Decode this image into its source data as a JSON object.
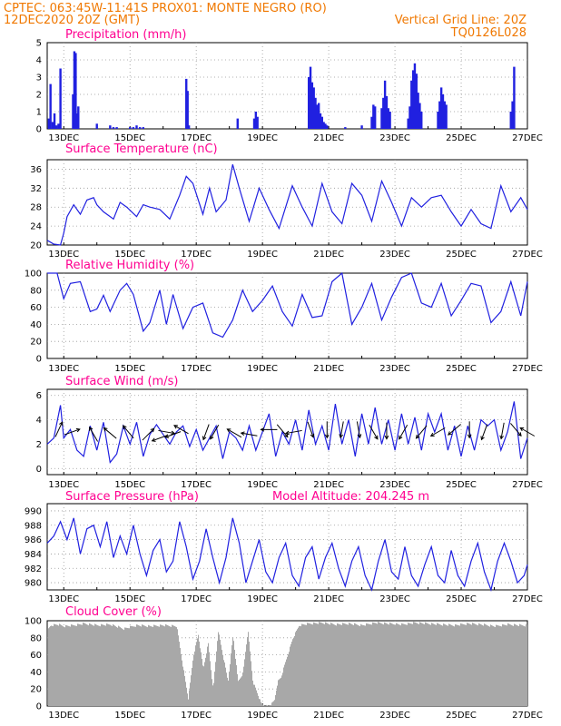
{
  "header": {
    "line1": "CPTEC:    063:45W-11:41S    PROX01: MONTE NEGRO (RO)",
    "line2_left": "12DEC2020 20Z (GMT)",
    "line2_right": "Vertical Grid Line: 20Z",
    "line3_right": "TQ0126L028"
  },
  "colors": {
    "header": "#f07800",
    "title": "#ff0090",
    "series": "#2020e0",
    "cloud": "#a8a8a8",
    "arrow": "#000000"
  },
  "x_axis": {
    "labels": [
      "13DEC",
      "15DEC",
      "17DEC",
      "19DEC",
      "21DEC",
      "23DEC",
      "25DEC",
      "27DEC"
    ],
    "start_day": 12.5,
    "end_day": 27.0
  },
  "chart_data": [
    {
      "type": "bar",
      "title": "Precipitation (mm/h)",
      "ylim": [
        0,
        5
      ],
      "yticks": [
        0,
        1,
        2,
        3,
        4,
        5
      ],
      "days": [
        12.55,
        12.6,
        12.66,
        12.72,
        12.78,
        12.84,
        12.9,
        13.28,
        13.32,
        13.36,
        13.4,
        13.44,
        14.0,
        14.4,
        14.5,
        14.6,
        15.0,
        15.1,
        15.2,
        15.3,
        15.4,
        16.7,
        16.74,
        16.78,
        18.25,
        18.75,
        18.8,
        18.85,
        20.4,
        20.45,
        20.5,
        20.55,
        20.6,
        20.65,
        20.7,
        20.75,
        20.8,
        20.85,
        20.9,
        20.95,
        21.5,
        22.0,
        22.3,
        22.35,
        22.4,
        22.6,
        22.65,
        22.7,
        22.75,
        22.8,
        22.85,
        23.4,
        23.45,
        23.5,
        23.55,
        23.6,
        23.65,
        23.7,
        23.75,
        23.8,
        24.3,
        24.35,
        24.4,
        24.45,
        24.5,
        24.55,
        26.5,
        26.55,
        26.6
      ],
      "values": [
        0.6,
        2.6,
        0.4,
        0.9,
        0.2,
        0.3,
        3.5,
        2.0,
        4.5,
        4.4,
        0.9,
        1.3,
        0.3,
        0.2,
        0.1,
        0.1,
        0.1,
        0.1,
        0.2,
        0.1,
        0.1,
        2.9,
        2.2,
        0.2,
        0.6,
        0.6,
        1.0,
        0.7,
        3.0,
        3.6,
        2.7,
        2.4,
        1.8,
        1.4,
        1.5,
        0.9,
        0.7,
        0.4,
        0.3,
        0.2,
        0.1,
        0.2,
        0.7,
        1.4,
        1.3,
        1.2,
        1.8,
        2.8,
        1.9,
        1.2,
        1.0,
        0.6,
        1.3,
        2.8,
        3.4,
        3.8,
        3.2,
        2.1,
        1.5,
        1.0,
        1.0,
        1.6,
        2.4,
        2.0,
        1.6,
        1.4,
        1.0,
        1.6,
        3.6
      ]
    },
    {
      "type": "line",
      "title": "Surface Temperature (nC)",
      "ylim": [
        20,
        38
      ],
      "yticks": [
        20,
        24,
        28,
        32,
        36
      ],
      "days": [
        12.5,
        12.7,
        12.9,
        13.0,
        13.1,
        13.3,
        13.5,
        13.7,
        13.9,
        14.0,
        14.2,
        14.5,
        14.7,
        14.9,
        15.2,
        15.4,
        15.6,
        15.9,
        16.2,
        16.5,
        16.7,
        16.9,
        17.2,
        17.4,
        17.6,
        17.9,
        18.1,
        18.3,
        18.6,
        18.9,
        19.2,
        19.5,
        19.9,
        20.2,
        20.5,
        20.8,
        21.1,
        21.4,
        21.7,
        22.0,
        22.3,
        22.6,
        22.9,
        23.2,
        23.5,
        23.8,
        24.1,
        24.4,
        24.7,
        25.0,
        25.3,
        25.6,
        25.9,
        26.2,
        26.5,
        26.8,
        27.0
      ],
      "values": [
        21.0,
        20.2,
        20.0,
        22.5,
        26.0,
        28.5,
        26.5,
        29.5,
        30.0,
        28.5,
        27.0,
        25.5,
        29.0,
        28.0,
        26.0,
        28.5,
        28.0,
        27.5,
        25.5,
        30.5,
        34.5,
        33.0,
        26.5,
        32.0,
        27.0,
        29.5,
        37.0,
        32.0,
        25.0,
        32.0,
        27.5,
        23.5,
        32.5,
        28.0,
        24.0,
        33.0,
        27.0,
        24.5,
        33.0,
        30.5,
        25.0,
        33.5,
        29.0,
        24.0,
        30.0,
        28.0,
        30.0,
        30.5,
        27.0,
        24.0,
        27.5,
        24.5,
        23.5,
        32.5,
        27.0,
        30.0,
        27.5
      ]
    },
    {
      "type": "line",
      "title": "Relative Humidity (%)",
      "ylim": [
        0,
        100
      ],
      "yticks": [
        0,
        20,
        40,
        60,
        80,
        100
      ],
      "days": [
        12.5,
        12.8,
        13.0,
        13.2,
        13.5,
        13.8,
        14.0,
        14.2,
        14.4,
        14.7,
        14.9,
        15.1,
        15.4,
        15.6,
        15.9,
        16.1,
        16.3,
        16.6,
        16.9,
        17.2,
        17.5,
        17.8,
        18.1,
        18.4,
        18.7,
        19.0,
        19.3,
        19.6,
        19.9,
        20.2,
        20.5,
        20.8,
        21.1,
        21.4,
        21.7,
        22.0,
        22.3,
        22.6,
        22.9,
        23.2,
        23.5,
        23.8,
        24.1,
        24.4,
        24.7,
        25.0,
        25.3,
        25.6,
        25.9,
        26.2,
        26.5,
        26.8,
        27.0
      ],
      "values": [
        100,
        100,
        70,
        88,
        90,
        55,
        58,
        74,
        55,
        80,
        88,
        75,
        32,
        42,
        80,
        40,
        75,
        35,
        60,
        65,
        30,
        25,
        45,
        80,
        55,
        68,
        85,
        55,
        38,
        75,
        48,
        50,
        90,
        100,
        40,
        60,
        88,
        45,
        72,
        95,
        100,
        65,
        60,
        88,
        50,
        68,
        88,
        85,
        42,
        55,
        90,
        50,
        90
      ]
    },
    {
      "type": "line",
      "title": "Surface Wind (m/s)",
      "ylim": [
        -0.5,
        6.5
      ],
      "yticks": [
        0,
        2,
        4,
        6
      ],
      "days": [
        12.5,
        12.7,
        12.9,
        13.0,
        13.2,
        13.4,
        13.6,
        13.8,
        14.0,
        14.2,
        14.4,
        14.6,
        14.8,
        15.0,
        15.2,
        15.4,
        15.6,
        15.8,
        16.0,
        16.2,
        16.4,
        16.6,
        16.8,
        17.0,
        17.2,
        17.4,
        17.6,
        17.8,
        18.0,
        18.2,
        18.4,
        18.6,
        18.8,
        19.0,
        19.2,
        19.4,
        19.6,
        19.8,
        20.0,
        20.2,
        20.4,
        20.6,
        20.8,
        21.0,
        21.2,
        21.4,
        21.6,
        21.8,
        22.0,
        22.2,
        22.4,
        22.6,
        22.8,
        23.0,
        23.2,
        23.4,
        23.6,
        23.8,
        24.0,
        24.2,
        24.4,
        24.6,
        24.8,
        25.0,
        25.2,
        25.4,
        25.6,
        25.8,
        26.0,
        26.2,
        26.4,
        26.6,
        26.8,
        27.0
      ],
      "values": [
        2.0,
        2.5,
        5.2,
        2.5,
        3.2,
        1.5,
        1.0,
        3.5,
        1.5,
        3.8,
        0.5,
        1.2,
        3.5,
        2.0,
        3.8,
        1.0,
        2.8,
        3.6,
        2.8,
        2.0,
        3.0,
        3.5,
        1.8,
        3.2,
        1.5,
        2.5,
        3.5,
        0.8,
        3.0,
        2.5,
        1.5,
        3.5,
        1.5,
        3.0,
        4.5,
        1.0,
        3.0,
        2.0,
        4.0,
        1.5,
        4.8,
        2.0,
        3.5,
        1.5,
        5.3,
        2.0,
        4.0,
        1.0,
        4.5,
        2.0,
        5.0,
        2.0,
        4.0,
        1.5,
        4.5,
        2.0,
        4.2,
        1.5,
        4.5,
        3.0,
        4.5,
        1.5,
        3.5,
        1.0,
        3.5,
        1.5,
        4.0,
        3.5,
        4.0,
        1.5,
        3.0,
        5.5,
        0.8,
        2.5
      ],
      "arrows": {
        "days": [
          12.85,
          13.25,
          13.9,
          14.4,
          14.95,
          15.55,
          15.9,
          16.1,
          16.3,
          16.55,
          17.3,
          17.55,
          18.15,
          18.6,
          19.2,
          19.6,
          19.95,
          20.45,
          20.95,
          21.4,
          21.9,
          22.35,
          22.75,
          23.25,
          23.8,
          24.3,
          24.8,
          25.25,
          25.7,
          26.25,
          26.65,
          27.0
        ],
        "speeds": [
          3.2,
          3.0,
          2.8,
          2.9,
          3.0,
          2.8,
          2.5,
          3.0,
          2.8,
          3.2,
          3.0,
          3.0,
          2.9,
          2.8,
          3.2,
          3.1,
          3.0,
          3.2,
          3.2,
          3.2,
          3.2,
          3.0,
          3.1,
          3.0,
          3.0,
          3.0,
          3.2,
          3.2,
          3.0,
          3.1,
          3.2,
          3.0
        ],
        "dirs_deg": [
          25,
          70,
          330,
          310,
          320,
          45,
          250,
          100,
          250,
          300,
          200,
          210,
          300,
          280,
          270,
          140,
          260,
          160,
          180,
          190,
          170,
          150,
          180,
          210,
          220,
          240,
          230,
          180,
          200,
          190,
          140,
          300
        ]
      }
    },
    {
      "type": "line",
      "title": "Surface Pressure (hPa)",
      "annotation": "Model Altitude: 204.245 m",
      "ylim": [
        979,
        991
      ],
      "yticks": [
        980,
        982,
        984,
        986,
        988,
        990
      ],
      "days": [
        12.5,
        12.7,
        12.9,
        13.1,
        13.3,
        13.5,
        13.7,
        13.9,
        14.1,
        14.3,
        14.5,
        14.7,
        14.9,
        15.1,
        15.3,
        15.5,
        15.7,
        15.9,
        16.1,
        16.3,
        16.5,
        16.7,
        16.9,
        17.1,
        17.3,
        17.5,
        17.7,
        17.9,
        18.1,
        18.3,
        18.5,
        18.7,
        18.9,
        19.1,
        19.3,
        19.5,
        19.7,
        19.9,
        20.1,
        20.3,
        20.5,
        20.7,
        20.9,
        21.1,
        21.3,
        21.5,
        21.7,
        21.9,
        22.1,
        22.3,
        22.5,
        22.7,
        22.9,
        23.1,
        23.3,
        23.5,
        23.7,
        23.9,
        24.1,
        24.3,
        24.5,
        24.7,
        24.9,
        25.1,
        25.3,
        25.5,
        25.7,
        25.9,
        26.1,
        26.3,
        26.5,
        26.7,
        26.9,
        27.0
      ],
      "values": [
        985.5,
        986.5,
        988.5,
        986.0,
        989.0,
        984.0,
        987.5,
        988.0,
        985.0,
        988.5,
        983.5,
        986.5,
        984.0,
        988.0,
        984.0,
        981.0,
        984.5,
        986.0,
        981.5,
        983.0,
        988.5,
        985.0,
        980.5,
        983.0,
        987.5,
        983.5,
        980.0,
        983.5,
        989.0,
        985.5,
        980.0,
        983.0,
        986.0,
        981.5,
        980.0,
        983.5,
        985.5,
        981.0,
        979.5,
        983.5,
        985.0,
        980.5,
        983.5,
        985.5,
        982.0,
        979.5,
        983.0,
        985.0,
        981.0,
        979.0,
        983.0,
        986.0,
        981.5,
        980.5,
        985.0,
        981.0,
        979.5,
        982.5,
        985.0,
        981.0,
        980.0,
        984.5,
        981.0,
        979.5,
        983.0,
        985.5,
        981.5,
        979.0,
        983.0,
        985.5,
        983.0,
        980.0,
        981.0,
        982.5
      ]
    },
    {
      "type": "bar",
      "title": "Cloud Cover (%)",
      "ylim": [
        0,
        100
      ],
      "yticks": [
        0,
        20,
        40,
        60,
        80,
        100
      ],
      "days": [
        12.5,
        12.6,
        12.8,
        13.0,
        13.3,
        13.6,
        14.0,
        14.4,
        14.8,
        15.2,
        15.6,
        16.0,
        16.4,
        16.6,
        16.75,
        16.9,
        17.05,
        17.2,
        17.35,
        17.5,
        17.65,
        17.8,
        17.95,
        18.1,
        18.25,
        18.4,
        18.55,
        18.7,
        18.85,
        18.95,
        19.05,
        19.15,
        19.25,
        19.35,
        19.45,
        19.55,
        19.7,
        19.9,
        20.1,
        20.4,
        20.8,
        21.2,
        21.6,
        22.0,
        22.4,
        22.8,
        23.2,
        23.6,
        24.0,
        24.4,
        24.8,
        25.2,
        25.6,
        26.0,
        26.4,
        26.8,
        27.0
      ],
      "values": [
        90,
        96,
        97,
        95,
        96,
        98,
        96,
        97,
        92,
        96,
        95,
        96,
        95,
        45,
        10,
        60,
        85,
        45,
        75,
        20,
        90,
        60,
        30,
        85,
        30,
        40,
        90,
        30,
        15,
        4,
        2,
        1,
        3,
        8,
        30,
        35,
        55,
        80,
        96,
        98,
        99,
        97,
        98,
        96,
        99,
        98,
        97,
        99,
        98,
        97,
        96,
        98,
        97,
        95,
        97,
        96,
        96
      ]
    }
  ]
}
